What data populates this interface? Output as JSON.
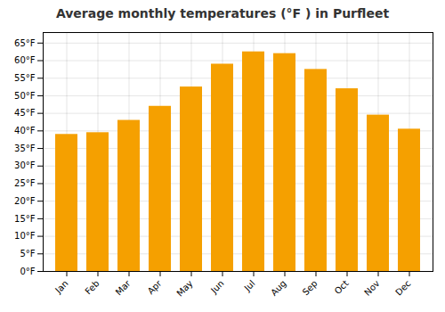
{
  "chart_data": {
    "type": "bar",
    "title": "Average monthly temperatures (°F ) in Purfleet",
    "categories": [
      "Jan",
      "Feb",
      "Mar",
      "Apr",
      "May",
      "Jun",
      "Jul",
      "Aug",
      "Sep",
      "Oct",
      "Nov",
      "Dec"
    ],
    "values": [
      39,
      39.5,
      43,
      47,
      52.5,
      59,
      62.5,
      62,
      57.5,
      52,
      44.5,
      40.5
    ],
    "color": "#F5A000",
    "ylim": [
      0,
      68
    ],
    "yticks": [
      {
        "value": 0,
        "label": "0°F"
      },
      {
        "value": 5,
        "label": "5°F"
      },
      {
        "value": 10,
        "label": "10°F"
      },
      {
        "value": 15,
        "label": "15°F"
      },
      {
        "value": 20,
        "label": "20°F"
      },
      {
        "value": 25,
        "label": "25°F"
      },
      {
        "value": 30,
        "label": "30°F"
      },
      {
        "value": 35,
        "label": "35°F"
      },
      {
        "value": 40,
        "label": "40°F"
      },
      {
        "value": 45,
        "label": "45°F"
      },
      {
        "value": 50,
        "label": "50°F"
      },
      {
        "value": 55,
        "label": "55°F"
      },
      {
        "value": 60,
        "label": "60°F"
      },
      {
        "value": 65,
        "label": "65°F"
      }
    ],
    "grid": true
  }
}
